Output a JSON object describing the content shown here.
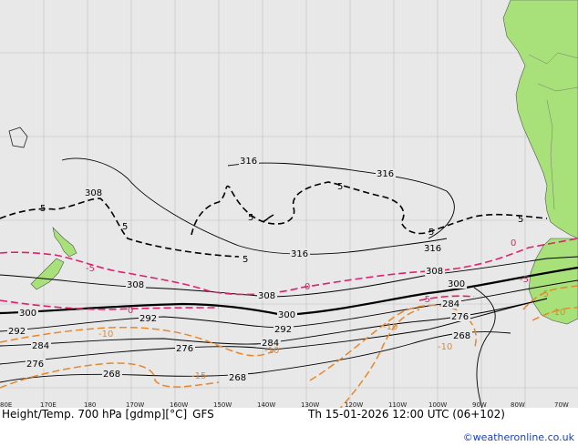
{
  "header": {
    "product": "Height/Temp. 700 hPa [gdmp][°C]",
    "model": "GFS",
    "valid": "Th 15-01-2026 12:00 UTC (06+102)"
  },
  "credit": "©weatheronline.co.uk",
  "colors": {
    "sea": "#e8e8e8",
    "land": "#a8e07a",
    "height": "#000000",
    "temp_warm": "#e0206e",
    "temp_cold": "#e8862a"
  },
  "longitudes": [
    "80E",
    "170E",
    "180",
    "170W",
    "160W",
    "150W",
    "140W",
    "130W",
    "120W",
    "110W",
    "100W",
    "90W",
    "80W",
    "70W"
  ],
  "height_labels": [
    "316",
    "316",
    "316",
    "316",
    "308",
    "308",
    "308",
    "308",
    "300",
    "300",
    "300",
    "292",
    "292",
    "292",
    "284",
    "284",
    "284",
    "276",
    "276",
    "276",
    "268",
    "268",
    "268"
  ],
  "temp_labels": [
    "5",
    "5",
    "5",
    "5",
    "5",
    "5",
    "5",
    "0",
    "0",
    "0",
    "-5",
    "-5",
    "-5",
    "-5",
    "-10",
    "-10",
    "-10",
    "-10",
    "-10",
    "-15"
  ]
}
